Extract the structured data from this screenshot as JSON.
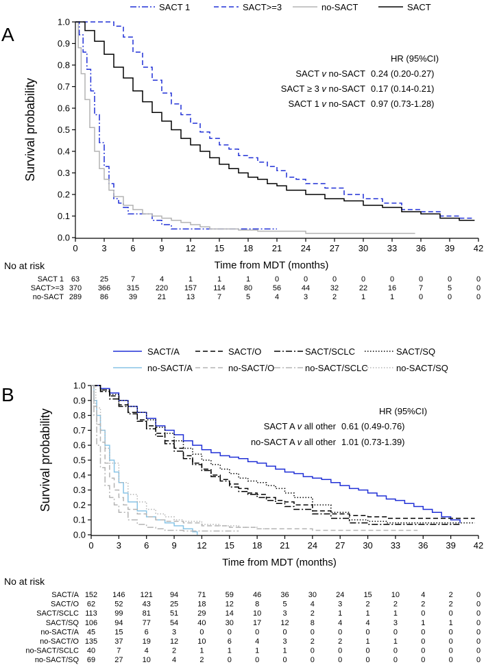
{
  "chart_data": [
    {
      "panel": "A",
      "type": "line",
      "subtype": "kaplan-meier",
      "xlabel": "Time from MDT (months)",
      "ylabel": "Survival probability",
      "xlim": [
        0,
        42
      ],
      "ylim": [
        0,
        1
      ],
      "xticks": [
        0,
        3,
        6,
        9,
        12,
        15,
        18,
        21,
        24,
        27,
        30,
        33,
        36,
        39,
        42
      ],
      "yticks": [
        0.0,
        0.1,
        0.2,
        0.3,
        0.4,
        0.5,
        0.6,
        0.7,
        0.8,
        0.9,
        1.0
      ],
      "legend_position": "top",
      "series": [
        {
          "name": "SACT 1",
          "color": "#1f2fd6",
          "dash": "dashdot",
          "x": [
            0,
            0.4,
            0.8,
            1.2,
            1.6,
            2,
            2.5,
            3,
            3.5,
            4,
            4.5,
            5,
            5.5,
            6,
            7,
            8,
            9,
            10,
            12,
            15,
            18,
            21
          ],
          "y": [
            1.0,
            0.94,
            0.86,
            0.78,
            0.68,
            0.57,
            0.44,
            0.33,
            0.25,
            0.18,
            0.16,
            0.14,
            0.11,
            0.11,
            0.11,
            0.08,
            0.06,
            0.04,
            0.04,
            0.04,
            0.04,
            0.04
          ]
        },
        {
          "name": "SACT>=3",
          "color": "#1f2fd6",
          "dash": "dashed",
          "x": [
            0,
            3,
            4,
            5,
            6,
            7,
            8,
            9,
            10,
            11,
            12,
            13,
            14,
            15,
            16,
            17,
            18,
            19,
            20,
            21,
            22,
            23,
            24,
            26,
            28,
            30,
            32,
            34,
            36,
            38,
            40,
            41.6
          ],
          "y": [
            1.0,
            1.0,
            0.98,
            0.93,
            0.86,
            0.79,
            0.73,
            0.67,
            0.62,
            0.57,
            0.53,
            0.49,
            0.46,
            0.43,
            0.41,
            0.38,
            0.37,
            0.35,
            0.33,
            0.31,
            0.28,
            0.27,
            0.25,
            0.23,
            0.2,
            0.18,
            0.16,
            0.13,
            0.12,
            0.1,
            0.09,
            0.09
          ]
        },
        {
          "name": "no-SACT",
          "color": "#b3b3b3",
          "dash": "solid",
          "x": [
            0,
            0.3,
            0.6,
            1,
            1.5,
            2,
            2.5,
            3,
            3.5,
            4,
            5,
            6,
            7,
            8,
            9,
            10,
            11,
            12,
            13,
            14,
            15,
            17,
            19,
            21,
            24,
            28,
            32,
            35.4
          ],
          "y": [
            1.0,
            0.88,
            0.76,
            0.64,
            0.51,
            0.4,
            0.32,
            0.27,
            0.22,
            0.19,
            0.15,
            0.13,
            0.11,
            0.1,
            0.09,
            0.08,
            0.07,
            0.06,
            0.05,
            0.04,
            0.04,
            0.035,
            0.03,
            0.03,
            0.02,
            0.02,
            0.02,
            0.02
          ]
        },
        {
          "name": "SACT",
          "color": "#000000",
          "dash": "solid",
          "x": [
            0,
            1,
            2,
            3,
            4,
            5,
            6,
            7,
            8,
            9,
            10,
            11,
            12,
            13,
            14,
            15,
            16,
            17,
            18,
            19,
            20,
            21,
            22,
            24,
            26,
            28,
            30,
            32,
            34,
            36,
            38,
            40,
            41.6
          ],
          "y": [
            1.0,
            0.96,
            0.91,
            0.85,
            0.79,
            0.74,
            0.68,
            0.63,
            0.58,
            0.54,
            0.5,
            0.46,
            0.43,
            0.4,
            0.37,
            0.34,
            0.32,
            0.3,
            0.28,
            0.27,
            0.25,
            0.24,
            0.22,
            0.2,
            0.18,
            0.17,
            0.15,
            0.14,
            0.12,
            0.11,
            0.09,
            0.08,
            0.08
          ]
        }
      ],
      "hr_table": {
        "header": "HR (95%CI)",
        "rows": [
          {
            "label_a": "SACT ",
            "label_v": "v",
            "label_b": " no-SACT",
            "value": "0.24 (0.20-0.27)"
          },
          {
            "label_a": "SACT ≥ 3 ",
            "label_v": "v",
            "label_b": " no-SACT",
            "value": "0.17 (0.14-0.21)"
          },
          {
            "label_a": "SACT 1 ",
            "label_v": "v",
            "label_b": " no-SACT",
            "value": "0.97 (0.73-1.28)"
          }
        ]
      },
      "risk_table": {
        "title": "No at risk",
        "rows": [
          {
            "label": "SACT 1",
            "values": [
              63,
              25,
              7,
              4,
              1,
              1,
              1,
              0,
              0,
              0,
              0,
              0,
              0,
              0,
              0
            ]
          },
          {
            "label": "SACT>=3",
            "values": [
              370,
              366,
              315,
              220,
              157,
              114,
              80,
              56,
              44,
              32,
              22,
              16,
              7,
              5,
              0
            ]
          },
          {
            "label": "no-SACT",
            "values": [
              289,
              86,
              39,
              21,
              13,
              7,
              5,
              4,
              3,
              2,
              1,
              1,
              0,
              0,
              0
            ]
          }
        ]
      }
    },
    {
      "panel": "B",
      "type": "line",
      "subtype": "kaplan-meier",
      "xlabel": "Time from MDT (months)",
      "ylabel": "Survival probability",
      "xlim": [
        0,
        42
      ],
      "ylim": [
        0,
        1
      ],
      "xticks": [
        0,
        3,
        6,
        9,
        12,
        15,
        18,
        21,
        24,
        27,
        30,
        33,
        36,
        39,
        42
      ],
      "yticks": [
        0.0,
        0.1,
        0.2,
        0.3,
        0.4,
        0.5,
        0.6,
        0.7,
        0.8,
        0.9,
        1.0
      ],
      "legend_position": "top",
      "series": [
        {
          "name": "SACT/A",
          "color": "#1f2fd6",
          "dash": "solid",
          "x": [
            0,
            1,
            2,
            3,
            4,
            5,
            6,
            7,
            8,
            9,
            10,
            11,
            12,
            13,
            14,
            15,
            16,
            17,
            18,
            19,
            20,
            21,
            22,
            23,
            24,
            25,
            26,
            27,
            28,
            29,
            30,
            31,
            32,
            33,
            34,
            35,
            36,
            37,
            38,
            39,
            40
          ],
          "y": [
            1.0,
            0.98,
            0.95,
            0.9,
            0.86,
            0.82,
            0.78,
            0.73,
            0.7,
            0.67,
            0.63,
            0.6,
            0.57,
            0.55,
            0.53,
            0.52,
            0.51,
            0.49,
            0.48,
            0.46,
            0.44,
            0.42,
            0.41,
            0.39,
            0.38,
            0.37,
            0.35,
            0.33,
            0.31,
            0.3,
            0.28,
            0.26,
            0.24,
            0.23,
            0.21,
            0.19,
            0.17,
            0.15,
            0.12,
            0.1,
            0.08
          ]
        },
        {
          "name": "SACT/O",
          "color": "#000000",
          "dash": "dashed",
          "x": [
            0,
            1,
            2,
            3,
            4,
            5,
            6,
            7,
            8,
            9,
            10,
            11,
            12,
            13,
            14,
            15,
            16,
            17,
            18,
            19,
            20,
            21,
            22,
            24,
            26,
            28,
            30,
            32,
            34,
            36,
            38,
            41.6
          ],
          "y": [
            1.0,
            0.97,
            0.93,
            0.87,
            0.82,
            0.77,
            0.73,
            0.68,
            0.63,
            0.58,
            0.53,
            0.48,
            0.44,
            0.4,
            0.37,
            0.34,
            0.31,
            0.28,
            0.27,
            0.25,
            0.23,
            0.22,
            0.2,
            0.16,
            0.14,
            0.13,
            0.12,
            0.11,
            0.11,
            0.11,
            0.11,
            0.11
          ]
        },
        {
          "name": "SACT/SCLC",
          "color": "#000000",
          "dash": "dashdot",
          "x": [
            0,
            1,
            2,
            3,
            4,
            5,
            6,
            7,
            8,
            9,
            10,
            11,
            12,
            13,
            14,
            15,
            16,
            17,
            18,
            19,
            20,
            21,
            22,
            24,
            26,
            28,
            30,
            32,
            34,
            36,
            40
          ],
          "y": [
            1.0,
            0.96,
            0.91,
            0.86,
            0.81,
            0.76,
            0.71,
            0.66,
            0.61,
            0.56,
            0.51,
            0.47,
            0.43,
            0.39,
            0.36,
            0.32,
            0.29,
            0.27,
            0.25,
            0.23,
            0.21,
            0.19,
            0.17,
            0.14,
            0.11,
            0.08,
            0.07,
            0.07,
            0.07,
            0.07,
            0.07
          ]
        },
        {
          "name": "SACT/SQ",
          "color": "#000000",
          "dash": "dotted",
          "x": [
            0,
            1,
            2,
            3,
            4,
            5,
            6,
            7,
            8,
            9,
            10,
            11,
            12,
            13,
            14,
            15,
            16,
            17,
            18,
            19,
            20,
            21,
            22,
            24,
            26,
            28,
            30,
            32,
            36,
            40,
            41.6
          ],
          "y": [
            1.0,
            0.97,
            0.94,
            0.9,
            0.86,
            0.82,
            0.77,
            0.72,
            0.68,
            0.63,
            0.58,
            0.54,
            0.5,
            0.47,
            0.44,
            0.41,
            0.38,
            0.36,
            0.35,
            0.33,
            0.31,
            0.28,
            0.25,
            0.2,
            0.15,
            0.1,
            0.09,
            0.08,
            0.08,
            0.08,
            0.08
          ]
        },
        {
          "name": "no-SACT/A",
          "color": "#87c4e6",
          "dash": "solid",
          "x": [
            0,
            0.3,
            0.6,
            1,
            1.5,
            2,
            2.5,
            3,
            3.5,
            4,
            5,
            6,
            7,
            8,
            9,
            10,
            11,
            11.5
          ],
          "y": [
            1.0,
            0.9,
            0.8,
            0.7,
            0.6,
            0.5,
            0.42,
            0.35,
            0.28,
            0.22,
            0.16,
            0.12,
            0.1,
            0.08,
            0.06,
            0.04,
            0.02,
            0.0
          ]
        },
        {
          "name": "no-SACT/O",
          "color": "#b3b3b3",
          "dash": "dashed",
          "x": [
            0,
            0.3,
            0.6,
            1,
            1.5,
            2,
            2.5,
            3,
            3.5,
            4,
            5,
            6,
            7,
            8,
            10,
            12,
            15,
            18,
            21,
            24,
            28,
            32,
            35.4
          ],
          "y": [
            1.0,
            0.86,
            0.74,
            0.62,
            0.48,
            0.38,
            0.3,
            0.25,
            0.2,
            0.17,
            0.14,
            0.12,
            0.1,
            0.09,
            0.08,
            0.06,
            0.05,
            0.04,
            0.04,
            0.03,
            0.03,
            0.03,
            0.03
          ]
        },
        {
          "name": "no-SACT/SCLC",
          "color": "#b3b3b3",
          "dash": "dashdot",
          "x": [
            0,
            0.3,
            0.6,
            1,
            1.5,
            2,
            2.5,
            3,
            4,
            5,
            6,
            7,
            8,
            10,
            12,
            14,
            16
          ],
          "y": [
            1.0,
            0.8,
            0.6,
            0.45,
            0.33,
            0.25,
            0.2,
            0.15,
            0.1,
            0.07,
            0.05,
            0.04,
            0.03,
            0.025,
            0.025,
            0.025,
            0.025
          ]
        },
        {
          "name": "no-SACT/SQ",
          "color": "#b3b3b3",
          "dash": "dotted",
          "x": [
            0,
            0.5,
            1,
            1.5,
            2,
            3,
            4,
            5,
            6,
            7,
            8,
            9,
            10,
            12,
            14,
            16,
            18,
            20
          ],
          "y": [
            1.0,
            0.85,
            0.7,
            0.58,
            0.48,
            0.35,
            0.27,
            0.22,
            0.17,
            0.14,
            0.12,
            0.1,
            0.09,
            0.07,
            0.06,
            0.05,
            0.04,
            0.04
          ]
        }
      ],
      "hr_table": {
        "header": "HR (95%CI)",
        "rows": [
          {
            "label_a": "SACT A ",
            "label_v": "v",
            "label_b": " all other",
            "value": "0.61 (0.49-0.76)"
          },
          {
            "label_a": "no-SACT A ",
            "label_v": "v",
            "label_b": " all other",
            "value": "1.01 (0.73-1.39)"
          }
        ]
      },
      "risk_table": {
        "title": "No at risk",
        "rows": [
          {
            "label": "SACT/A",
            "values": [
              152,
              146,
              121,
              94,
              71,
              59,
              46,
              36,
              30,
              24,
              15,
              10,
              4,
              2,
              0
            ]
          },
          {
            "label": "SACT/O",
            "values": [
              62,
              52,
              43,
              25,
              18,
              12,
              8,
              5,
              4,
              3,
              2,
              2,
              2,
              2,
              0
            ]
          },
          {
            "label": "SACT/SCLC",
            "values": [
              113,
              99,
              81,
              51,
              29,
              14,
              10,
              3,
              2,
              1,
              1,
              1,
              0,
              0,
              0
            ]
          },
          {
            "label": "SACT/SQ",
            "values": [
              106,
              94,
              77,
              54,
              40,
              30,
              17,
              12,
              8,
              4,
              4,
              3,
              1,
              1,
              0
            ]
          },
          {
            "label": "no-SACT/A",
            "values": [
              45,
              15,
              6,
              3,
              0,
              0,
              0,
              0,
              0,
              0,
              0,
              0,
              0,
              0,
              0
            ]
          },
          {
            "label": "no-SACT/O",
            "values": [
              135,
              37,
              19,
              12,
              10,
              6,
              4,
              3,
              2,
              2,
              1,
              1,
              0,
              0,
              0
            ]
          },
          {
            "label": "no-SACT/SCLC",
            "values": [
              40,
              7,
              4,
              2,
              1,
              1,
              1,
              1,
              0,
              0,
              0,
              0,
              0,
              0,
              0
            ]
          },
          {
            "label": "no-SACT/SQ",
            "values": [
              69,
              27,
              10,
              4,
              2,
              0,
              0,
              0,
              0,
              0,
              0,
              0,
              0,
              0,
              0
            ]
          }
        ]
      }
    }
  ]
}
